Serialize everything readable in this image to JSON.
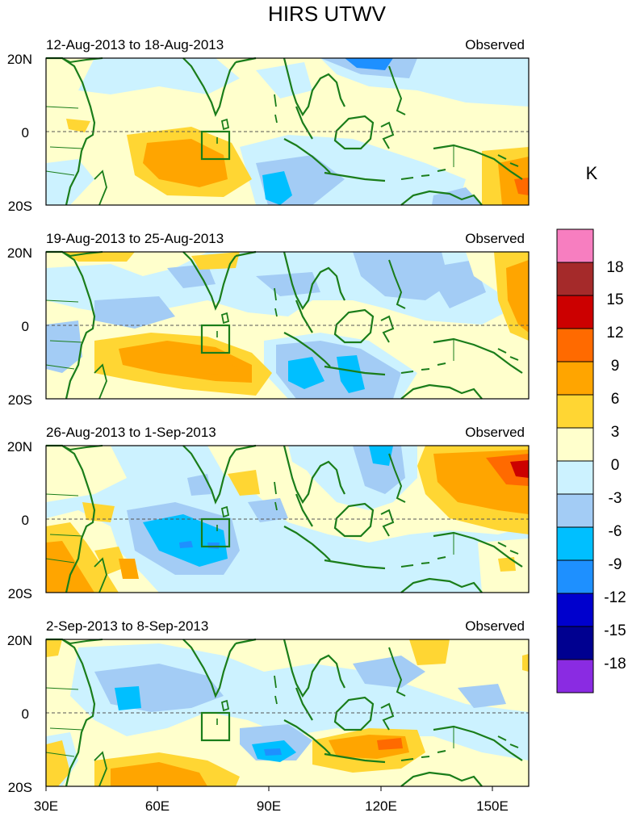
{
  "title": "HIRS UTWV",
  "unit_label": "K",
  "panels": [
    {
      "date_range": "12-Aug-2013 to 18-Aug-2013",
      "tag": "Observed"
    },
    {
      "date_range": "19-Aug-2013 to 25-Aug-2013",
      "tag": "Observed"
    },
    {
      "date_range": "26-Aug-2013 to 1-Sep-2013",
      "tag": "Observed"
    },
    {
      "date_range": "2-Sep-2013 to 8-Sep-2013",
      "tag": "Observed"
    }
  ],
  "lat_labels": [
    "20N",
    "0",
    "20S"
  ],
  "lon_labels": [
    "30E",
    "60E",
    "90E",
    "120E",
    "150E"
  ],
  "colorbar": {
    "tick_labels": [
      "18",
      "15",
      "12",
      "9",
      "6",
      "3",
      "0",
      "-3",
      "-6",
      "-9",
      "-12",
      "-15",
      "-18"
    ],
    "colors_top_to_bottom": [
      "#f77ec0",
      "#a52a2a",
      "#cc0000",
      "#ff6a00",
      "#ffa500",
      "#ffd633",
      "#ffffcc",
      "#ccf2ff",
      "#a3ccf5",
      "#00bfff",
      "#1e90ff",
      "#0000cd",
      "#000090",
      "#8a2be2"
    ]
  },
  "colors": {
    "coast": "#1a7d1a",
    "equator": "#555555"
  }
}
